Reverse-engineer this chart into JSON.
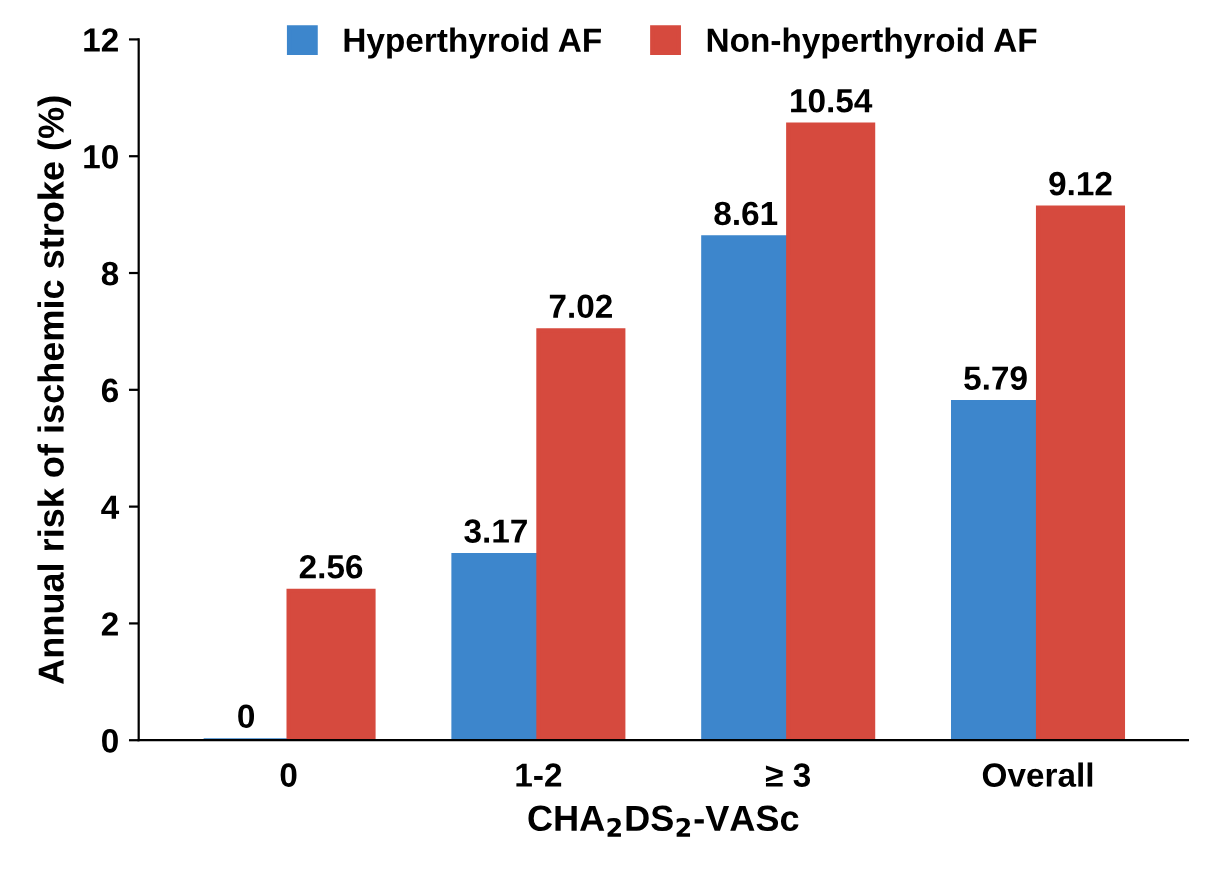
{
  "chart_data": {
    "type": "bar",
    "categories": [
      "0",
      "1-2",
      "≥ 3",
      "Overall"
    ],
    "series": [
      {
        "name": "Hyperthyroid AF",
        "color": "#3d86cc",
        "values": [
          0,
          3.17,
          8.61,
          5.79
        ]
      },
      {
        "name": "Non-hyperthyroid AF",
        "color": "#d64a3e",
        "values": [
          2.56,
          7.02,
          10.54,
          9.12
        ]
      }
    ],
    "xlabel": "CHA$_{2}$DS$_{2}$-VASc",
    "ylabel": "Annual risk of ischemic stroke (%)",
    "ylim": [
      0,
      12
    ],
    "yticks": [
      0,
      2,
      4,
      6,
      8,
      10,
      12
    ],
    "data_labels": true,
    "legend": "top",
    "grid": false
  }
}
